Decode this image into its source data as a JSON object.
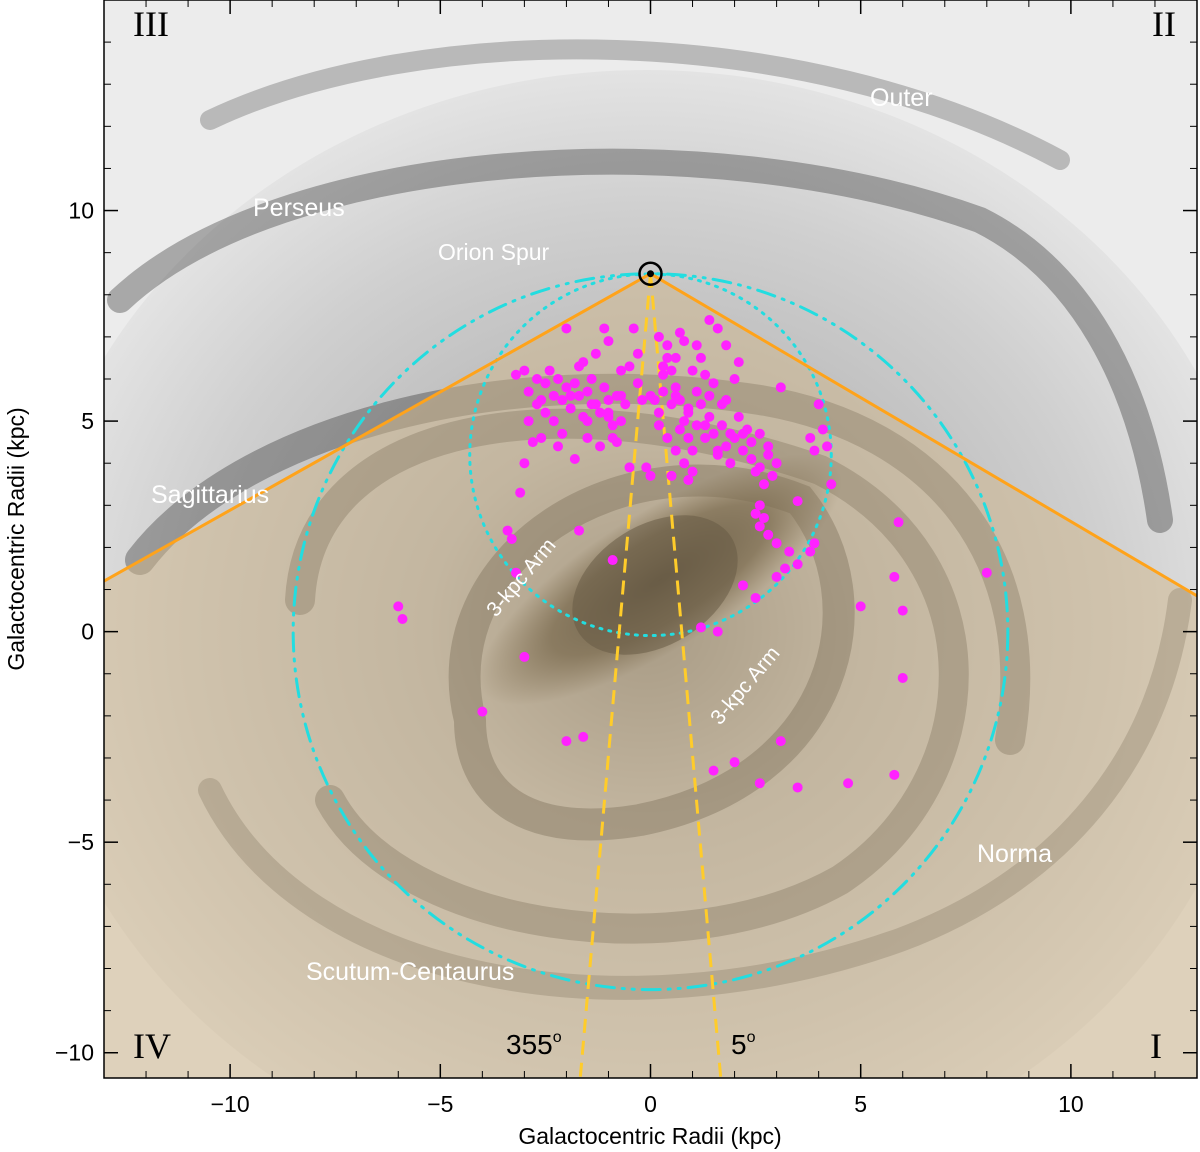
{
  "chart_data": {
    "type": "scatter",
    "xlabel": "Galactocentric Radii (kpc)",
    "ylabel": "Galactocentric Radii (kpc)",
    "xlim": [
      -13,
      13
    ],
    "ylim": [
      -10.6,
      15
    ],
    "xticks": [
      -10,
      -5,
      0,
      5,
      10
    ],
    "xtick_labels": [
      "−10",
      "−5",
      "0",
      "5",
      "10"
    ],
    "yticks": [
      -10,
      -5,
      0,
      5,
      10
    ],
    "ytick_labels": [
      "−10",
      "−5",
      "0",
      "5",
      "10"
    ],
    "grid": false,
    "colors": {
      "points": "#ff22ff",
      "survey_edges": "#ffa31a",
      "los_lines": "#ffcc2a",
      "circles": "#22dde0",
      "shaded_region": "#cfb68a"
    },
    "sun": {
      "x": 0,
      "y": 8.5
    },
    "quadrant_labels": [
      "III",
      "II",
      "IV",
      "I"
    ],
    "arm_labels": [
      "Outer",
      "Perseus",
      "Orion Spur",
      "Sagittarius",
      "3-kpc Arm",
      "3-kpc Arm",
      "Norma",
      "Scutum-Centaurus"
    ],
    "angle_labels": [
      "355",
      "5"
    ],
    "points": [
      [
        -3.2,
        6.1
      ],
      [
        -3.0,
        6.2
      ],
      [
        -2.9,
        5.7
      ],
      [
        -2.7,
        6.0
      ],
      [
        -2.6,
        5.5
      ],
      [
        -2.5,
        5.2
      ],
      [
        -2.4,
        6.2
      ],
      [
        -2.2,
        6.0
      ],
      [
        -2.1,
        5.5
      ],
      [
        -2.0,
        5.8
      ],
      [
        -1.9,
        5.3
      ],
      [
        -1.8,
        5.9
      ],
      [
        -1.7,
        5.6
      ],
      [
        -1.6,
        5.1
      ],
      [
        -1.5,
        5.7
      ],
      [
        -1.4,
        6.0
      ],
      [
        -1.3,
        5.4
      ],
      [
        -1.2,
        5.2
      ],
      [
        -1.1,
        5.8
      ],
      [
        -1.0,
        5.5
      ],
      [
        -0.9,
        4.9
      ],
      [
        -0.8,
        5.6
      ],
      [
        -0.7,
        6.2
      ],
      [
        -1.6,
        6.4
      ],
      [
        -1.3,
        6.6
      ],
      [
        -1.0,
        6.9
      ],
      [
        -0.4,
        7.2
      ],
      [
        -0.3,
        6.6
      ],
      [
        -0.5,
        6.3
      ],
      [
        -2.3,
        5.0
      ],
      [
        -2.6,
        4.6
      ],
      [
        -2.2,
        4.4
      ],
      [
        -1.8,
        4.1
      ],
      [
        -1.2,
        4.4
      ],
      [
        -2.8,
        4.5
      ],
      [
        -3.0,
        4.0
      ],
      [
        -0.9,
        4.6
      ],
      [
        -1.5,
        4.6
      ],
      [
        -1.1,
        7.2
      ],
      [
        -2.0,
        7.2
      ],
      [
        -1.7,
        6.3
      ],
      [
        -2.9,
        5.0
      ],
      [
        -2.7,
        5.4
      ],
      [
        -2.3,
        5.6
      ],
      [
        -1.9,
        5.6
      ],
      [
        -1.4,
        5.4
      ],
      [
        -1.0,
        5.1
      ],
      [
        -0.6,
        5.4
      ],
      [
        -0.7,
        5.0
      ],
      [
        -2.5,
        5.9
      ],
      [
        0.2,
        7.0
      ],
      [
        0.4,
        6.5
      ],
      [
        0.5,
        6.2
      ],
      [
        0.6,
        5.8
      ],
      [
        0.7,
        5.5
      ],
      [
        0.8,
        5.0
      ],
      [
        0.9,
        4.6
      ],
      [
        1.0,
        4.3
      ],
      [
        1.1,
        4.9
      ],
      [
        1.2,
        5.4
      ],
      [
        1.3,
        4.6
      ],
      [
        1.4,
        5.1
      ],
      [
        1.5,
        4.7
      ],
      [
        1.6,
        4.2
      ],
      [
        1.7,
        4.9
      ],
      [
        1.8,
        4.4
      ],
      [
        1.9,
        4.0
      ],
      [
        2.0,
        4.6
      ],
      [
        2.2,
        4.3
      ],
      [
        2.4,
        4.1
      ],
      [
        2.6,
        3.9
      ],
      [
        2.8,
        4.2
      ],
      [
        3.0,
        4.0
      ],
      [
        2.9,
        3.7
      ],
      [
        2.5,
        3.8
      ],
      [
        0.2,
        5.2
      ],
      [
        0.3,
        5.7
      ],
      [
        0.5,
        5.4
      ],
      [
        0.7,
        4.8
      ],
      [
        0.9,
        5.2
      ],
      [
        1.1,
        5.7
      ],
      [
        1.3,
        6.1
      ],
      [
        0.4,
        6.8
      ],
      [
        0.8,
        6.9
      ],
      [
        1.4,
        7.4
      ],
      [
        1.6,
        7.2
      ],
      [
        1.8,
        6.8
      ],
      [
        2.1,
        6.4
      ],
      [
        1.2,
        6.5
      ],
      [
        1.0,
        6.2
      ],
      [
        0.6,
        6.5
      ],
      [
        0.3,
        6.1
      ],
      [
        0.1,
        5.5
      ],
      [
        0.2,
        4.9
      ],
      [
        0.4,
        4.6
      ],
      [
        0.6,
        4.3
      ],
      [
        0.8,
        4.0
      ],
      [
        1.0,
        3.8
      ],
      [
        0.9,
        3.6
      ],
      [
        1.7,
        5.4
      ],
      [
        1.5,
        5.9
      ],
      [
        1.8,
        5.5
      ],
      [
        2.1,
        5.1
      ],
      [
        2.3,
        4.8
      ],
      [
        2.6,
        4.7
      ],
      [
        2.8,
        4.4
      ],
      [
        1.9,
        4.7
      ],
      [
        1.6,
        4.3
      ],
      [
        2.7,
        3.5
      ],
      [
        0.5,
        3.7
      ],
      [
        0.0,
        5.6
      ],
      [
        -0.2,
        5.5
      ],
      [
        -0.1,
        3.9
      ],
      [
        1.3,
        4.9
      ],
      [
        3.8,
        4.6
      ],
      [
        3.9,
        4.3
      ],
      [
        4.1,
        4.8
      ],
      [
        4.2,
        4.4
      ],
      [
        4.3,
        3.5
      ],
      [
        4.0,
        5.4
      ],
      [
        2.6,
        3.0
      ],
      [
        2.7,
        2.7
      ],
      [
        2.8,
        2.3
      ],
      [
        3.0,
        2.1
      ],
      [
        3.3,
        1.9
      ],
      [
        3.5,
        1.6
      ],
      [
        3.8,
        1.9
      ],
      [
        3.9,
        2.1
      ],
      [
        2.5,
        2.8
      ],
      [
        2.6,
        2.5
      ],
      [
        3.0,
        1.3
      ],
      [
        3.2,
        1.5
      ],
      [
        2.5,
        0.8
      ],
      [
        2.2,
        1.1
      ],
      [
        -3.1,
        3.3
      ],
      [
        -3.4,
        2.4
      ],
      [
        -3.3,
        2.2
      ],
      [
        -3.2,
        1.4
      ],
      [
        -1.7,
        2.4
      ],
      [
        -0.9,
        1.7
      ],
      [
        -6.0,
        0.6
      ],
      [
        -5.9,
        0.3
      ],
      [
        -3.0,
        -0.6
      ],
      [
        1.2,
        0.1
      ],
      [
        1.6,
        0.0
      ],
      [
        5.0,
        0.6
      ],
      [
        6.0,
        0.5
      ],
      [
        5.8,
        1.3
      ],
      [
        5.9,
        2.6
      ],
      [
        8.0,
        1.4
      ],
      [
        6.0,
        -1.1
      ],
      [
        -4.0,
        -1.9
      ],
      [
        -2.0,
        -2.6
      ],
      [
        -1.6,
        -2.5
      ],
      [
        1.5,
        -3.3
      ],
      [
        2.0,
        -3.1
      ],
      [
        2.6,
        -3.6
      ],
      [
        3.1,
        -2.6
      ],
      [
        3.5,
        -3.7
      ],
      [
        4.7,
        -3.6
      ],
      [
        5.8,
        -3.4
      ],
      [
        3.5,
        3.1
      ],
      [
        -0.5,
        3.9
      ],
      [
        0.0,
        3.7
      ],
      [
        0.3,
        6.3
      ],
      [
        -0.7,
        5.6
      ],
      [
        -1.0,
        5.2
      ],
      [
        -1.5,
        5.0
      ],
      [
        -2.1,
        4.7
      ],
      [
        -0.8,
        4.5
      ],
      [
        3.1,
        5.8
      ],
      [
        2.0,
        6.0
      ],
      [
        1.1,
        6.8
      ],
      [
        0.7,
        7.1
      ],
      [
        -0.3,
        5.9
      ],
      [
        0.6,
        5.6
      ],
      [
        0.9,
        5.3
      ],
      [
        1.4,
        5.6
      ],
      [
        2.2,
        4.7
      ],
      [
        2.4,
        4.5
      ]
    ]
  }
}
